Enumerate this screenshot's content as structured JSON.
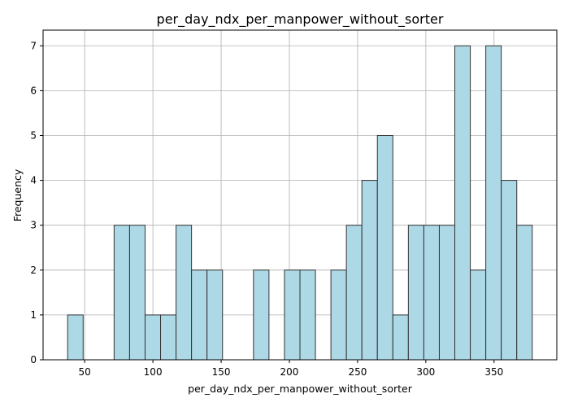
{
  "chart_data": {
    "type": "histogram",
    "title": "per_day_ndx_per_manpower_without_sorter",
    "xlabel": "per_day_ndx_per_manpower_without_sorter",
    "ylabel": "Frequency",
    "xlim": [
      19.5,
      396
    ],
    "ylim": [
      0,
      7.35
    ],
    "x_ticks": [
      50,
      100,
      150,
      200,
      250,
      300,
      350
    ],
    "y_ticks": [
      0,
      1,
      2,
      3,
      4,
      5,
      6,
      7
    ],
    "grid": true,
    "bin_start": 37.5,
    "bin_width": 11.35,
    "counts": [
      1,
      0,
      0,
      3,
      3,
      1,
      1,
      3,
      2,
      2,
      0,
      0,
      2,
      0,
      2,
      2,
      0,
      2,
      3,
      4,
      5,
      1,
      3,
      3,
      3,
      7,
      2,
      7,
      4,
      3
    ],
    "colors": {
      "bar_fill": "#add8e6",
      "bar_edge": "#333333",
      "grid": "#b0b0b0"
    }
  }
}
